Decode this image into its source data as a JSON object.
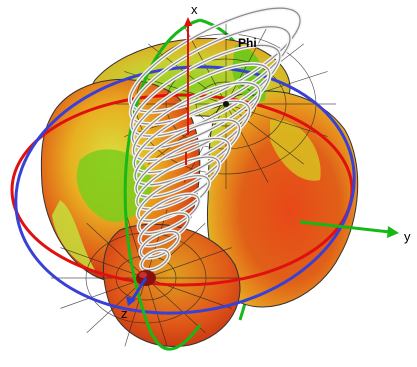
{
  "scene": {
    "axes": {
      "x_label": "x",
      "y_label": "y",
      "z_label": "z"
    },
    "annotation": {
      "phi_label": "Phi"
    },
    "colors": {
      "x_axis": "#e01010",
      "y_axis": "#16b816",
      "z_axis": "#2a3ed8",
      "red_ring": "#e01010",
      "blue_ring": "#3840d8",
      "green_ring": "#18b818",
      "helix": "#c8c8c8",
      "pattern_high": "#d83a10",
      "pattern_mid": "#e8b020",
      "pattern_low": "#8cd020"
    }
  }
}
